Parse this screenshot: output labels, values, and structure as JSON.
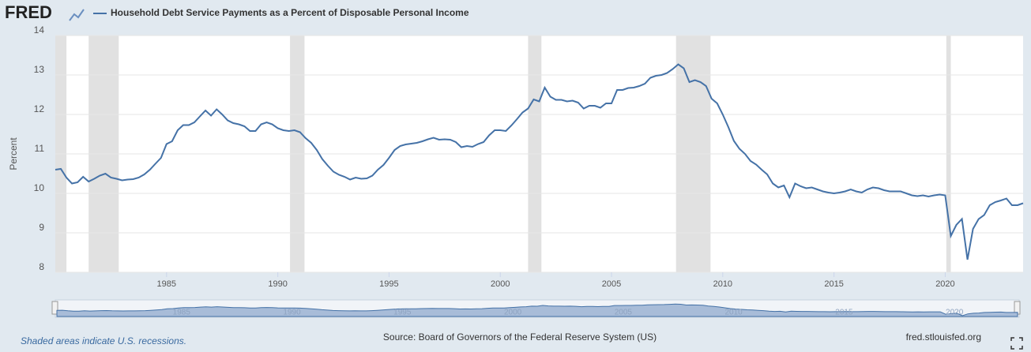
{
  "logo": "FRED",
  "chart_data": {
    "type": "line",
    "title": "Household Debt Service Payments as a Percent of Disposable Personal Income",
    "y_label": "Percent",
    "note": "Shaded areas indicate U.S. recessions.",
    "source": "Source: Board of Governors of the Federal Reserve System (US)",
    "site": "fred.stlouisfed.org",
    "xlim": [
      1980,
      2023.5
    ],
    "ylim": [
      8,
      14
    ],
    "xticks": [
      1985,
      1990,
      1995,
      2000,
      2005,
      2010,
      2015,
      2020
    ],
    "yticks": [
      8,
      9,
      10,
      11,
      12,
      13,
      14
    ],
    "grid": true,
    "recession_color": "#e1e1e1",
    "recessions": [
      [
        1980,
        1980.5
      ],
      [
        1981.5,
        1982.85
      ],
      [
        1990.55,
        1991.2
      ],
      [
        2001.25,
        2001.85
      ],
      [
        2007.9,
        2009.45
      ],
      [
        2020.05,
        2020.25
      ]
    ],
    "x": [
      1980,
      1980.25,
      1980.5,
      1980.75,
      1981,
      1981.25,
      1981.5,
      1981.75,
      1982,
      1982.25,
      1982.5,
      1982.75,
      1983,
      1983.25,
      1983.5,
      1983.75,
      1984,
      1984.25,
      1984.5,
      1984.75,
      1985,
      1985.25,
      1985.5,
      1985.75,
      1986,
      1986.25,
      1986.5,
      1986.75,
      1987,
      1987.25,
      1987.5,
      1987.75,
      1988,
      1988.25,
      1988.5,
      1988.75,
      1989,
      1989.25,
      1989.5,
      1989.75,
      1990,
      1990.25,
      1990.5,
      1990.75,
      1991,
      1991.25,
      1991.5,
      1991.75,
      1992,
      1992.25,
      1992.5,
      1992.75,
      1993,
      1993.25,
      1993.5,
      1993.75,
      1994,
      1994.25,
      1994.5,
      1994.75,
      1995,
      1995.25,
      1995.5,
      1995.75,
      1996,
      1996.25,
      1996.5,
      1996.75,
      1997,
      1997.25,
      1997.5,
      1997.75,
      1998,
      1998.25,
      1998.5,
      1998.75,
      1999,
      1999.25,
      1999.5,
      1999.75,
      2000,
      2000.25,
      2000.5,
      2000.75,
      2001,
      2001.25,
      2001.5,
      2001.75,
      2002,
      2002.25,
      2002.5,
      2002.75,
      2003,
      2003.25,
      2003.5,
      2003.75,
      2004,
      2004.25,
      2004.5,
      2004.75,
      2005,
      2005.25,
      2005.5,
      2005.75,
      2006,
      2006.25,
      2006.5,
      2006.75,
      2007,
      2007.25,
      2007.5,
      2007.75,
      2008,
      2008.25,
      2008.5,
      2008.75,
      2009,
      2009.25,
      2009.5,
      2009.75,
      2010,
      2010.25,
      2010.5,
      2010.75,
      2011,
      2011.25,
      2011.5,
      2011.75,
      2012,
      2012.25,
      2012.5,
      2012.75,
      2013,
      2013.25,
      2013.5,
      2013.75,
      2014,
      2014.25,
      2014.5,
      2014.75,
      2015,
      2015.25,
      2015.5,
      2015.75,
      2016,
      2016.25,
      2016.5,
      2016.75,
      2017,
      2017.25,
      2017.5,
      2017.75,
      2018,
      2018.25,
      2018.5,
      2018.75,
      2019,
      2019.25,
      2019.5,
      2019.75,
      2020,
      2020.25,
      2020.5,
      2020.75,
      2021,
      2021.25,
      2021.5,
      2021.75,
      2022,
      2022.25,
      2022.5,
      2022.75,
      2023,
      2023.25,
      2023.5
    ],
    "series": [
      {
        "name": "Household Debt Service Payments as a Percent of Disposable Personal Income",
        "color": "#4572a7",
        "values": [
          10.6,
          10.62,
          10.4,
          10.25,
          10.28,
          10.42,
          10.3,
          10.37,
          10.45,
          10.5,
          10.4,
          10.37,
          10.33,
          10.35,
          10.36,
          10.4,
          10.48,
          10.6,
          10.75,
          10.9,
          11.25,
          11.32,
          11.6,
          11.73,
          11.73,
          11.8,
          11.95,
          12.1,
          11.97,
          12.13,
          12.0,
          11.85,
          11.78,
          11.75,
          11.7,
          11.58,
          11.58,
          11.75,
          11.8,
          11.75,
          11.65,
          11.6,
          11.58,
          11.6,
          11.55,
          11.4,
          11.28,
          11.1,
          10.87,
          10.7,
          10.55,
          10.47,
          10.42,
          10.35,
          10.4,
          10.37,
          10.38,
          10.45,
          10.6,
          10.72,
          10.9,
          11.1,
          11.2,
          11.24,
          11.26,
          11.28,
          11.32,
          11.37,
          11.41,
          11.36,
          11.37,
          11.36,
          11.3,
          11.17,
          11.2,
          11.18,
          11.25,
          11.3,
          11.47,
          11.6,
          11.6,
          11.58,
          11.72,
          11.88,
          12.05,
          12.15,
          12.38,
          12.33,
          12.68,
          12.45,
          12.37,
          12.37,
          12.33,
          12.35,
          12.3,
          12.15,
          12.22,
          12.22,
          12.17,
          12.28,
          12.28,
          12.62,
          12.62,
          12.67,
          12.68,
          12.72,
          12.78,
          12.93,
          12.98,
          13.0,
          13.05,
          13.15,
          13.27,
          13.17,
          12.82,
          12.87,
          12.82,
          12.72,
          12.4,
          12.28,
          12.0,
          11.68,
          11.33,
          11.13,
          11.0,
          10.82,
          10.73,
          10.6,
          10.48,
          10.25,
          10.15,
          10.2,
          9.9,
          10.25,
          10.18,
          10.13,
          10.15,
          10.1,
          10.05,
          10.02,
          10.0,
          10.02,
          10.05,
          10.1,
          10.05,
          10.02,
          10.1,
          10.15,
          10.13,
          10.08,
          10.05,
          10.05,
          10.05,
          10.0,
          9.95,
          9.93,
          9.95,
          9.92,
          9.95,
          9.97,
          9.95,
          8.92,
          9.2,
          9.35,
          8.32,
          9.1,
          9.35,
          9.45,
          9.7,
          9.78,
          9.82,
          9.87,
          9.7,
          9.7,
          9.75
        ]
      }
    ]
  }
}
